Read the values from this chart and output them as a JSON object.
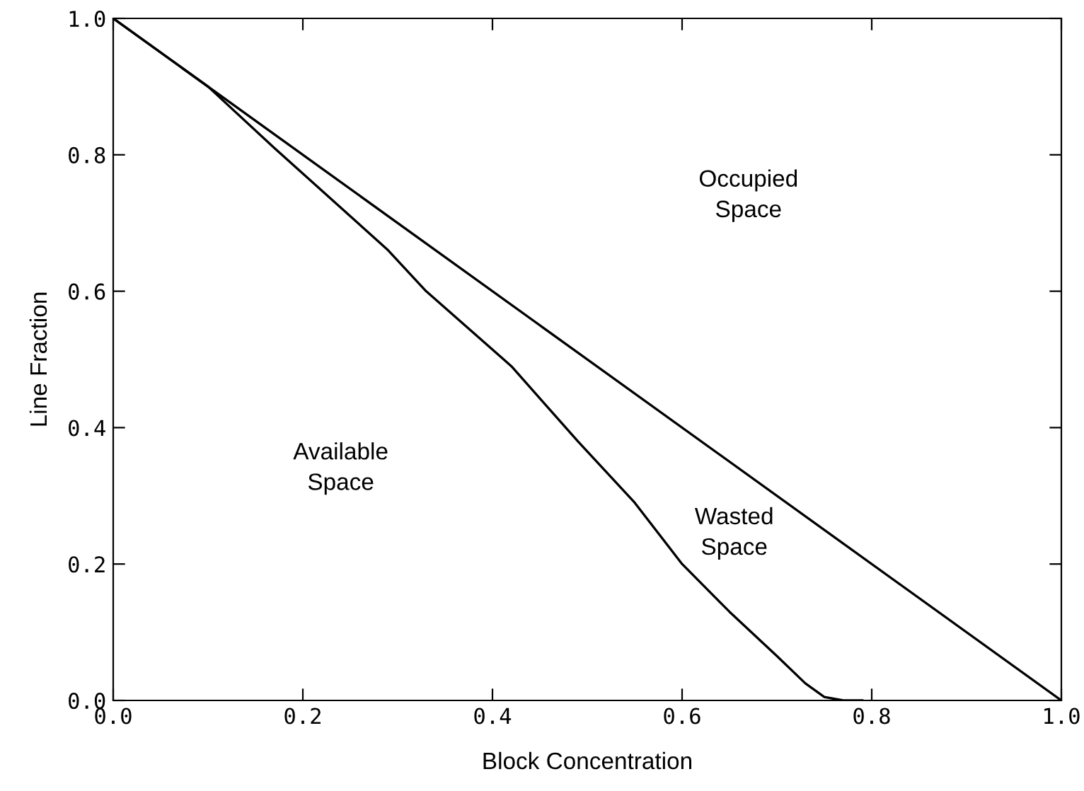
{
  "chart_data": {
    "type": "line",
    "xlabel": "Block Concentration",
    "ylabel": "Line Fraction",
    "series": [
      {
        "color": "#000000",
        "x": [
          0,
          1
        ],
        "values": [
          1,
          0
        ]
      },
      {
        "color": "#000000",
        "x": [
          0,
          0.1,
          0.17,
          0.29,
          0.33,
          0.42,
          0.49,
          0.55,
          0.6,
          0.65,
          0.7,
          0.73,
          0.75,
          0.77,
          0.79
        ],
        "values": [
          1,
          0.9,
          0.81,
          0.66,
          0.6,
          0.49,
          0.38,
          0.29,
          0.2,
          0.13,
          0.065,
          0.025,
          0.005,
          0,
          0
        ]
      }
    ],
    "annotations": [
      "Occupied\nSpace",
      "Available\nSpace",
      "Wasted\nSpace"
    ],
    "xlim": [
      0,
      1
    ],
    "ylim": [
      0,
      1
    ],
    "xticks": [
      {
        "value": 0,
        "label": "0.0"
      },
      0.2,
      0.4,
      0.6,
      0.8,
      {
        "value": 1,
        "label": "1.0"
      }
    ],
    "yticks": [
      {
        "value": 0,
        "label": "0.0"
      },
      0.2,
      0.4,
      0.6,
      0.8,
      {
        "value": 1,
        "label": "1.0"
      }
    ],
    "grid": false,
    "legend": false,
    "line_style": "solid"
  }
}
